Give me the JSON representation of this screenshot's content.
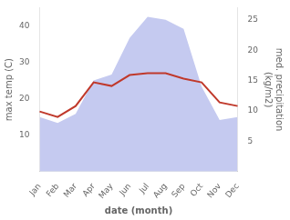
{
  "chart_data": {
    "type": "line",
    "categories": [
      "Jan",
      "Feb",
      "Mar",
      "Apr",
      "May",
      "Jun",
      "Jul",
      "Aug",
      "Sep",
      "Oct",
      "Nov",
      "Dec"
    ],
    "series": [
      {
        "type": "area",
        "color": "#c5caf0",
        "axis": "y2",
        "values": [
          9.0,
          8.0,
          9.5,
          15.0,
          16.0,
          22.0,
          25.5,
          25.0,
          23.5,
          14.0,
          8.5,
          9.0
        ]
      },
      {
        "type": "line",
        "color": "#c0392b",
        "values": [
          16.5,
          15.0,
          18.0,
          24.5,
          23.5,
          26.5,
          27.0,
          27.0,
          25.5,
          24.5,
          19.0,
          18.0
        ]
      }
    ],
    "x_label": "date (month)",
    "y_label": "max temp (C)",
    "y2_label": "med. precipitation\n(kg/m2)",
    "ylim": [
      0,
      45
    ],
    "yticks": [
      10,
      20,
      30,
      40
    ],
    "y2lim": [
      0,
      27
    ],
    "y2ticks": [
      5,
      10,
      15,
      20,
      25
    ],
    "grid": false
  }
}
